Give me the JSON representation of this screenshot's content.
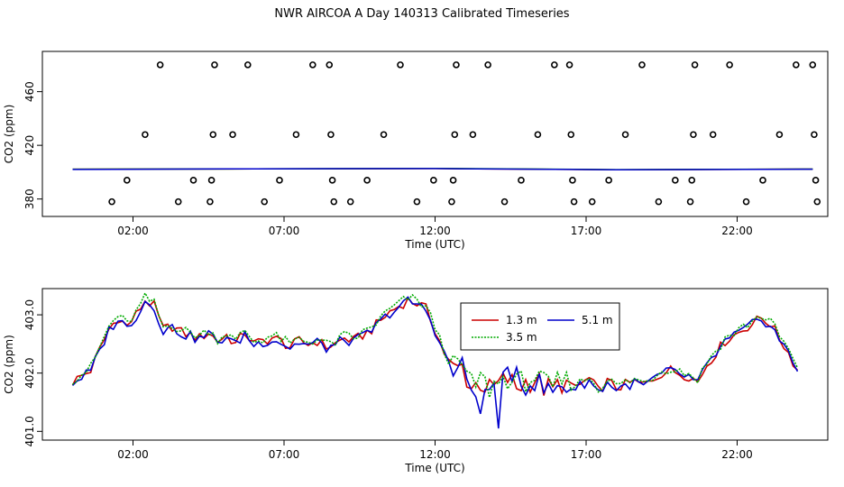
{
  "title": "NWR AIRCOA A  Day 140313  Calibrated Timeseries",
  "chart_data": [
    {
      "type": "scatter+line",
      "panel": "top",
      "xlabel": "Time (UTC)",
      "ylabel": "CO2 (ppm)",
      "xlim": [
        -1.0,
        25.0
      ],
      "ylim": [
        367.0,
        490.0
      ],
      "x_ticks": [
        2,
        7,
        12,
        17,
        22
      ],
      "x_tick_labels": [
        "02:00",
        "07:00",
        "12:00",
        "17:00",
        "22:00"
      ],
      "y_ticks": [
        380,
        420,
        460
      ],
      "y_tick_labels": [
        "380",
        "420",
        "460"
      ],
      "calibration_points": [
        {
          "x": 1.3,
          "y": 378
        },
        {
          "x": 1.8,
          "y": 394
        },
        {
          "x": 2.4,
          "y": 428
        },
        {
          "x": 2.9,
          "y": 480
        },
        {
          "x": 3.5,
          "y": 378
        },
        {
          "x": 4.0,
          "y": 394
        },
        {
          "x": 4.55,
          "y": 378
        },
        {
          "x": 4.6,
          "y": 394
        },
        {
          "x": 4.65,
          "y": 428
        },
        {
          "x": 4.7,
          "y": 480
        },
        {
          "x": 5.3,
          "y": 428
        },
        {
          "x": 5.8,
          "y": 480
        },
        {
          "x": 6.35,
          "y": 378
        },
        {
          "x": 6.85,
          "y": 394
        },
        {
          "x": 7.4,
          "y": 428
        },
        {
          "x": 7.95,
          "y": 480
        },
        {
          "x": 8.5,
          "y": 480
        },
        {
          "x": 8.55,
          "y": 428
        },
        {
          "x": 8.6,
          "y": 394
        },
        {
          "x": 8.65,
          "y": 378
        },
        {
          "x": 9.2,
          "y": 378
        },
        {
          "x": 9.75,
          "y": 394
        },
        {
          "x": 10.3,
          "y": 428
        },
        {
          "x": 10.85,
          "y": 480
        },
        {
          "x": 11.4,
          "y": 378
        },
        {
          "x": 11.95,
          "y": 394
        },
        {
          "x": 12.55,
          "y": 378
        },
        {
          "x": 12.6,
          "y": 394
        },
        {
          "x": 12.65,
          "y": 428
        },
        {
          "x": 12.7,
          "y": 480
        },
        {
          "x": 13.25,
          "y": 428
        },
        {
          "x": 13.75,
          "y": 480
        },
        {
          "x": 14.3,
          "y": 378
        },
        {
          "x": 14.85,
          "y": 394
        },
        {
          "x": 15.4,
          "y": 428
        },
        {
          "x": 15.95,
          "y": 480
        },
        {
          "x": 16.45,
          "y": 480
        },
        {
          "x": 16.5,
          "y": 428
        },
        {
          "x": 16.55,
          "y": 394
        },
        {
          "x": 16.6,
          "y": 378
        },
        {
          "x": 17.2,
          "y": 378
        },
        {
          "x": 17.75,
          "y": 394
        },
        {
          "x": 18.3,
          "y": 428
        },
        {
          "x": 18.85,
          "y": 480
        },
        {
          "x": 19.4,
          "y": 378
        },
        {
          "x": 19.95,
          "y": 394
        },
        {
          "x": 20.45,
          "y": 378
        },
        {
          "x": 20.5,
          "y": 394
        },
        {
          "x": 20.55,
          "y": 428
        },
        {
          "x": 20.6,
          "y": 480
        },
        {
          "x": 21.2,
          "y": 428
        },
        {
          "x": 21.75,
          "y": 480
        },
        {
          "x": 22.3,
          "y": 378
        },
        {
          "x": 22.85,
          "y": 394
        },
        {
          "x": 23.4,
          "y": 428
        },
        {
          "x": 23.95,
          "y": 480
        },
        {
          "x": 24.5,
          "y": 480
        },
        {
          "x": 24.55,
          "y": 428
        },
        {
          "x": 24.6,
          "y": 394
        },
        {
          "x": 24.65,
          "y": 378
        }
      ],
      "series": [
        {
          "color": "#cc0000",
          "x": [
            0,
            6,
            12,
            18,
            24.5
          ],
          "y": [
            402.2,
            402.4,
            402.7,
            401.8,
            402.3
          ]
        },
        {
          "color": "#00aa00",
          "x": [
            0,
            6,
            12,
            18,
            24.5
          ],
          "y": [
            402.2,
            402.4,
            402.8,
            401.9,
            402.3
          ]
        },
        {
          "color": "#0000cc",
          "x": [
            0,
            6,
            12,
            18,
            24.5
          ],
          "y": [
            402.0,
            402.5,
            402.7,
            401.8,
            402.2
          ]
        }
      ]
    },
    {
      "type": "line",
      "panel": "bottom",
      "xlabel": "Time (UTC)",
      "ylabel": "CO2 (ppm)",
      "xlim": [
        -1.0,
        25.0
      ],
      "ylim": [
        400.85,
        403.45
      ],
      "x_ticks": [
        2,
        7,
        12,
        17,
        22
      ],
      "x_tick_labels": [
        "02:00",
        "07:00",
        "12:00",
        "17:00",
        "22:00"
      ],
      "y_ticks": [
        401.0,
        402.0,
        403.0
      ],
      "y_tick_labels": [
        "401.0",
        "402.0",
        "403.0"
      ],
      "legend": {
        "position": "top-center"
      },
      "series": [
        {
          "name": "1.3 m",
          "color": "#cc0000",
          "dash": "",
          "offset": 0.0
        },
        {
          "name": "3.5 m",
          "color": "#00aa00",
          "dash": "2,1.5",
          "offset": 0.04
        },
        {
          "name": "5.1 m",
          "color": "#0000cc",
          "dash": "",
          "offset": -0.02
        }
      ],
      "x": [
        0.0,
        0.3,
        0.6,
        0.9,
        1.2,
        1.5,
        1.8,
        2.1,
        2.4,
        2.7,
        3.0,
        3.3,
        3.6,
        3.9,
        4.2,
        4.5,
        4.8,
        5.1,
        5.4,
        5.7,
        6.0,
        6.3,
        6.6,
        6.9,
        7.2,
        7.5,
        7.8,
        8.1,
        8.4,
        8.7,
        9.0,
        9.3,
        9.6,
        9.9,
        10.2,
        10.5,
        10.8,
        11.1,
        11.4,
        11.7,
        12.0,
        12.3,
        12.6,
        12.9,
        13.2,
        13.5,
        13.8,
        14.1,
        14.4,
        14.7,
        15.0,
        15.3,
        15.6,
        15.9,
        16.2,
        16.5,
        16.8,
        17.1,
        17.4,
        17.7,
        18.0,
        18.3,
        18.6,
        18.9,
        19.2,
        19.5,
        19.8,
        20.1,
        20.4,
        20.7,
        21.0,
        21.3,
        21.6,
        21.9,
        22.2,
        22.5,
        22.8,
        23.1,
        23.4,
        23.7,
        24.0
      ],
      "base": [
        401.85,
        401.95,
        402.05,
        402.4,
        402.75,
        402.95,
        402.8,
        403.0,
        403.25,
        403.15,
        402.75,
        402.8,
        402.7,
        402.65,
        402.6,
        402.7,
        402.55,
        402.65,
        402.5,
        402.7,
        402.5,
        402.55,
        402.6,
        402.55,
        402.45,
        402.55,
        402.5,
        402.55,
        402.45,
        402.5,
        402.6,
        402.55,
        402.65,
        402.75,
        402.9,
        403.05,
        403.15,
        403.25,
        403.2,
        403.1,
        402.75,
        402.35,
        402.05,
        402.1,
        401.75,
        401.85,
        401.7,
        401.8,
        401.9,
        401.75,
        401.85,
        401.9,
        401.75,
        401.7,
        401.85,
        401.75,
        401.8,
        401.9,
        401.7,
        401.85,
        401.75,
        401.8,
        401.85,
        401.8,
        401.9,
        402.0,
        402.05,
        402.0,
        401.95,
        401.85,
        402.15,
        402.35,
        402.55,
        402.65,
        402.75,
        402.85,
        402.95,
        402.85,
        402.6,
        402.35,
        402.05
      ],
      "blue_excursions": [
        {
          "x": 13.5,
          "y": 401.3
        },
        {
          "x": 14.1,
          "y": 401.05
        },
        {
          "x": 14.7,
          "y": 402.1
        },
        {
          "x": 15.3,
          "y": 401.7
        }
      ]
    }
  ]
}
